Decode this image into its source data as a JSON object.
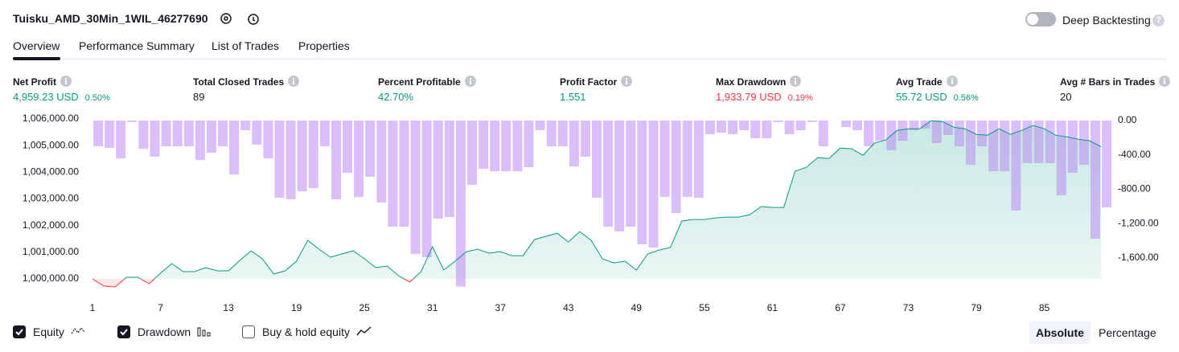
{
  "header": {
    "title": "Tuisku_AMD_30Min_1WIL_46277690",
    "toggle_label": "Deep Backtesting"
  },
  "tabs": [
    "Overview",
    "Performance Summary",
    "List of Trades",
    "Properties"
  ],
  "metrics": [
    {
      "label": "Net Profit",
      "value": "4,959.23 USD",
      "percent": "0.50%",
      "tone": "up"
    },
    {
      "label": "Total Closed Trades",
      "value": "89",
      "tone": "plain"
    },
    {
      "label": "Percent Profitable",
      "value": "42.70%",
      "tone": "up"
    },
    {
      "label": "Profit Factor",
      "value": "1.551",
      "tone": "up"
    },
    {
      "label": "Max Drawdown",
      "value": "1,933.79 USD",
      "percent": "0.19%",
      "tone": "down"
    },
    {
      "label": "Avg Trade",
      "value": "55.72 USD",
      "percent": "0.56%",
      "tone": "up"
    },
    {
      "label": "Avg # Bars in Trades",
      "value": "20",
      "tone": "plain"
    }
  ],
  "chart_data": {
    "type": "combo",
    "x": [
      1,
      2,
      3,
      4,
      5,
      6,
      7,
      8,
      9,
      10,
      11,
      12,
      13,
      14,
      15,
      16,
      17,
      18,
      19,
      20,
      21,
      22,
      23,
      24,
      25,
      26,
      27,
      28,
      29,
      30,
      31,
      32,
      33,
      34,
      35,
      36,
      37,
      38,
      39,
      40,
      41,
      42,
      43,
      44,
      45,
      46,
      47,
      48,
      49,
      50,
      51,
      52,
      53,
      54,
      55,
      56,
      57,
      58,
      59,
      60,
      61,
      62,
      63,
      64,
      65,
      66,
      67,
      68,
      69,
      70,
      71,
      72,
      73,
      74,
      75,
      76,
      77,
      78,
      79,
      80,
      81,
      82,
      83,
      84,
      85,
      86,
      87,
      88,
      89,
      90
    ],
    "xlim": [
      1,
      90
    ],
    "xticks": [
      1,
      7,
      13,
      19,
      25,
      31,
      37,
      43,
      49,
      55,
      61,
      67,
      73,
      79,
      85
    ],
    "ylim": [
      999458,
      1006241
    ],
    "yticks": [
      {
        "value": 1000000,
        "label": "1,000,000.00"
      },
      {
        "value": 1001000,
        "label": "1,001,000.00"
      },
      {
        "value": 1002000,
        "label": "1,002,000.00"
      },
      {
        "value": 1003000,
        "label": "1,003,000.00"
      },
      {
        "value": 1004000,
        "label": "1,004,000.00"
      },
      {
        "value": 1005000,
        "label": "1,005,000.00"
      },
      {
        "value": 1006000,
        "label": "1,006,000.00"
      }
    ],
    "y2lim": [
      -2012,
      94
    ],
    "y2ticks": [
      {
        "value": 0,
        "label": "0.00"
      },
      {
        "value": -400,
        "label": "-400.00"
      },
      {
        "value": -800,
        "label": "-800.00"
      },
      {
        "value": -1200,
        "label": "-1,200.00"
      },
      {
        "value": -1600,
        "label": "-1,600.00"
      }
    ],
    "series": [
      {
        "name": "Equity",
        "color": "#089981",
        "negative_color": "#f23645",
        "checked": true,
        "values": [
          1000000,
          999729,
          999699,
          1000060,
          1000060,
          999819,
          1000211,
          1000572,
          1000271,
          1000271,
          1000422,
          1000301,
          1000301,
          1000693,
          1001054,
          1000753,
          1000181,
          1000301,
          1000663,
          1001446,
          1001114,
          1000813,
          1000934,
          1001054,
          1000753,
          1000422,
          1000482,
          1000120,
          999880,
          1000271,
          1001205,
          1000331,
          1000663,
          1001024,
          1001114,
          1000964,
          1001024,
          1000873,
          1000873,
          1001476,
          1001596,
          1001717,
          1001385,
          1001777,
          1001446,
          1000753,
          1000602,
          1000663,
          1000331,
          1000934,
          1001084,
          1001175,
          1002169,
          1002229,
          1002229,
          1002289,
          1002319,
          1002319,
          1002410,
          1002711,
          1002681,
          1002681,
          1004036,
          1004187,
          1004548,
          1004518,
          1004910,
          1004880,
          1004638,
          1005090,
          1005211,
          1005572,
          1005632,
          1005632,
          1005934,
          1005904,
          1005693,
          1005632,
          1005422,
          1005391,
          1005632,
          1005422,
          1005572,
          1005753,
          1005632,
          1005391,
          1005331,
          1005241,
          1005181,
          1004959
        ]
      },
      {
        "name": "Drawdown",
        "color": "#b77ff5",
        "axis": "y2",
        "checked": true,
        "values": [
          -300,
          -318,
          -440,
          -19,
          -328,
          -421,
          -300,
          -300,
          -300,
          -459,
          -374,
          -300,
          -627,
          -112,
          -281,
          -440,
          -899,
          -917,
          -824,
          -786,
          -300,
          -917,
          -608,
          -889,
          -655,
          -955,
          -1236,
          -1236,
          -1554,
          -1591,
          -1142,
          -1123,
          -1933.79,
          -749,
          -562,
          -590,
          -590,
          -590,
          -543,
          -112,
          -300,
          -300,
          -534,
          -421,
          -899,
          -1236,
          -1292,
          -1236,
          -1441,
          -1479,
          -889,
          -1076,
          -889,
          -899,
          -159,
          -140,
          -159,
          -112,
          -206,
          -206,
          -19,
          -159,
          -112,
          -19,
          -300,
          0,
          -75,
          -112,
          -300,
          -234,
          -346,
          -234,
          -112,
          -94,
          -262,
          -168,
          -300,
          -515,
          -300,
          -590,
          -590,
          -1048,
          -496,
          -496,
          -496,
          -870,
          -608,
          -515,
          -1376,
          -1011
        ]
      }
    ],
    "extra_legend": {
      "label": "Buy & hold equity",
      "checked": false
    }
  },
  "footer": {
    "buttons": [
      "Absolute",
      "Percentage"
    ],
    "active": 0
  }
}
